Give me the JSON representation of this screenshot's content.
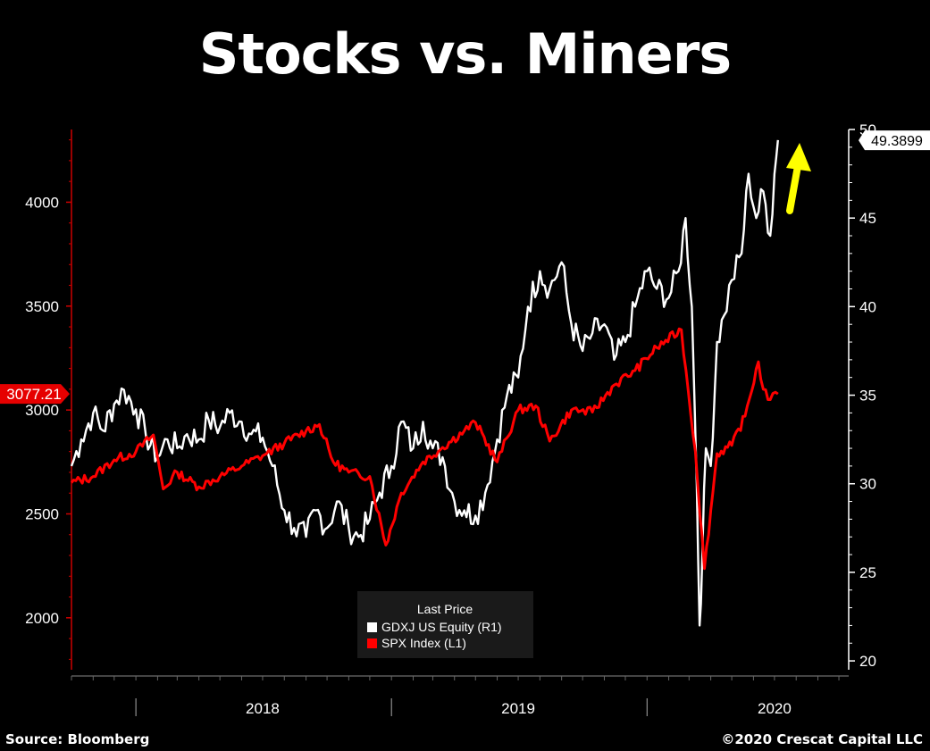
{
  "title": "Stocks vs. Miners",
  "footer": {
    "source": "Source: Bloomberg",
    "copyright": "©2020 Crescat Capital LLC"
  },
  "colors": {
    "background": "#000000",
    "gdxj": "#ffffff",
    "spx": "#ff0000",
    "left_axis": "#cc0000",
    "right_axis": "#ffffff",
    "arrow": "#ffff00",
    "legend_bg": "#1a1a1a"
  },
  "chart_data": {
    "type": "line",
    "title": "Stocks vs. Miners",
    "x_range": [
      "2017-09",
      "2020-07"
    ],
    "x_ticks": [
      "2018",
      "2019",
      "2020"
    ],
    "grid": false,
    "legend": {
      "title": "Last Price",
      "placement": "bottom-center",
      "entries": [
        "GDXJ US Equity  (R1)",
        "SPX Index  (L1)"
      ]
    },
    "left_axis": {
      "series": "SPX Index",
      "ticks": [
        "2000",
        "2500",
        "3000",
        "3500",
        "4000"
      ],
      "range": [
        1750,
        4350
      ],
      "last_value_label": "3077.21"
    },
    "right_axis": {
      "series": "GDXJ US Equity",
      "ticks": [
        "20",
        "25",
        "30",
        "35",
        "40",
        "45",
        "50"
      ],
      "range": [
        19.5,
        50
      ],
      "last_value_label": "49.3899"
    },
    "series": [
      {
        "name": "GDXJ US Equity  (R1)",
        "axis": "right",
        "color": "#ffffff",
        "points": [
          [
            "2017-10-01",
            31.0
          ],
          [
            "2017-10-15",
            32.5
          ],
          [
            "2017-11-01",
            34.0
          ],
          [
            "2017-11-15",
            33.0
          ],
          [
            "2017-12-01",
            34.5
          ],
          [
            "2017-12-15",
            35.3
          ],
          [
            "2018-01-01",
            34.2
          ],
          [
            "2018-01-15",
            32.8
          ],
          [
            "2018-02-01",
            31.5
          ],
          [
            "2018-02-15",
            32.5
          ],
          [
            "2018-03-01",
            32.0
          ],
          [
            "2018-03-15",
            32.8
          ],
          [
            "2018-04-01",
            32.5
          ],
          [
            "2018-04-15",
            33.6
          ],
          [
            "2018-05-01",
            33.2
          ],
          [
            "2018-05-15",
            34.0
          ],
          [
            "2018-06-01",
            33.5
          ],
          [
            "2018-06-15",
            32.8
          ],
          [
            "2018-07-01",
            32.6
          ],
          [
            "2018-07-15",
            31.0
          ],
          [
            "2018-08-01",
            28.5
          ],
          [
            "2018-08-15",
            27.5
          ],
          [
            "2018-09-01",
            27.0
          ],
          [
            "2018-09-15",
            28.5
          ],
          [
            "2018-10-01",
            27.5
          ],
          [
            "2018-10-15",
            29.0
          ],
          [
            "2018-11-01",
            27.5
          ],
          [
            "2018-11-15",
            27.0
          ],
          [
            "2018-12-01",
            28.0
          ],
          [
            "2018-12-15",
            29.5
          ],
          [
            "2019-01-01",
            31.0
          ],
          [
            "2019-01-15",
            33.5
          ],
          [
            "2019-02-01",
            32.0
          ],
          [
            "2019-02-15",
            33.5
          ],
          [
            "2019-03-01",
            32.0
          ],
          [
            "2019-03-15",
            31.5
          ],
          [
            "2019-04-01",
            29.0
          ],
          [
            "2019-04-15",
            28.5
          ],
          [
            "2019-05-01",
            28.2
          ],
          [
            "2019-05-15",
            29.5
          ],
          [
            "2019-06-01",
            32.5
          ],
          [
            "2019-06-15",
            35.0
          ],
          [
            "2019-07-01",
            36.0
          ],
          [
            "2019-07-15",
            40.0
          ],
          [
            "2019-08-01",
            42.0
          ],
          [
            "2019-08-15",
            41.0
          ],
          [
            "2019-09-01",
            42.5
          ],
          [
            "2019-09-15",
            39.0
          ],
          [
            "2019-10-01",
            37.5
          ],
          [
            "2019-10-15",
            38.5
          ],
          [
            "2019-11-01",
            39.0
          ],
          [
            "2019-11-15",
            37.0
          ],
          [
            "2019-12-01",
            38.0
          ],
          [
            "2019-12-15",
            40.0
          ],
          [
            "2020-01-01",
            42.0
          ],
          [
            "2020-01-15",
            41.0
          ],
          [
            "2020-02-01",
            40.5
          ],
          [
            "2020-02-15",
            42.0
          ],
          [
            "2020-02-25",
            45.0
          ],
          [
            "2020-03-05",
            40.0
          ],
          [
            "2020-03-12",
            30.0
          ],
          [
            "2020-03-16",
            22.0
          ],
          [
            "2020-03-20",
            26.0
          ],
          [
            "2020-03-25",
            32.0
          ],
          [
            "2020-04-01",
            31.0
          ],
          [
            "2020-04-10",
            38.0
          ],
          [
            "2020-04-20",
            39.5
          ],
          [
            "2020-05-01",
            41.5
          ],
          [
            "2020-05-15",
            43.0
          ],
          [
            "2020-05-25",
            47.5
          ],
          [
            "2020-06-05",
            45.0
          ],
          [
            "2020-06-15",
            46.5
          ],
          [
            "2020-06-25",
            44.0
          ],
          [
            "2020-07-01",
            47.5
          ],
          [
            "2020-07-06",
            49.4
          ]
        ]
      },
      {
        "name": "SPX Index  (L1)",
        "axis": "left",
        "color": "#ff0000",
        "points": [
          [
            "2017-10-01",
            2650
          ],
          [
            "2017-11-01",
            2680
          ],
          [
            "2017-12-01",
            2760
          ],
          [
            "2018-01-01",
            2800
          ],
          [
            "2018-01-26",
            2880
          ],
          [
            "2018-02-09",
            2620
          ],
          [
            "2018-03-01",
            2700
          ],
          [
            "2018-04-01",
            2630
          ],
          [
            "2018-05-01",
            2680
          ],
          [
            "2018-06-01",
            2730
          ],
          [
            "2018-07-01",
            2780
          ],
          [
            "2018-08-01",
            2840
          ],
          [
            "2018-09-01",
            2900
          ],
          [
            "2018-09-20",
            2930
          ],
          [
            "2018-10-10",
            2750
          ],
          [
            "2018-11-01",
            2700
          ],
          [
            "2018-12-01",
            2680
          ],
          [
            "2018-12-24",
            2350
          ],
          [
            "2019-01-15",
            2600
          ],
          [
            "2019-02-15",
            2750
          ],
          [
            "2019-03-15",
            2820
          ],
          [
            "2019-04-15",
            2900
          ],
          [
            "2019-05-01",
            2940
          ],
          [
            "2019-06-01",
            2750
          ],
          [
            "2019-07-01",
            3000
          ],
          [
            "2019-07-26",
            3020
          ],
          [
            "2019-08-15",
            2850
          ],
          [
            "2019-09-15",
            3000
          ],
          [
            "2019-10-15",
            2990
          ],
          [
            "2019-11-15",
            3120
          ],
          [
            "2019-12-15",
            3190
          ],
          [
            "2020-01-15",
            3300
          ],
          [
            "2020-02-19",
            3386
          ],
          [
            "2020-03-10",
            2800
          ],
          [
            "2020-03-23",
            2237
          ],
          [
            "2020-04-10",
            2790
          ],
          [
            "2020-05-01",
            2830
          ],
          [
            "2020-05-20",
            2970
          ],
          [
            "2020-06-08",
            3232
          ],
          [
            "2020-06-15",
            3100
          ],
          [
            "2020-06-25",
            3050
          ],
          [
            "2020-07-06",
            3077
          ]
        ]
      }
    ]
  }
}
